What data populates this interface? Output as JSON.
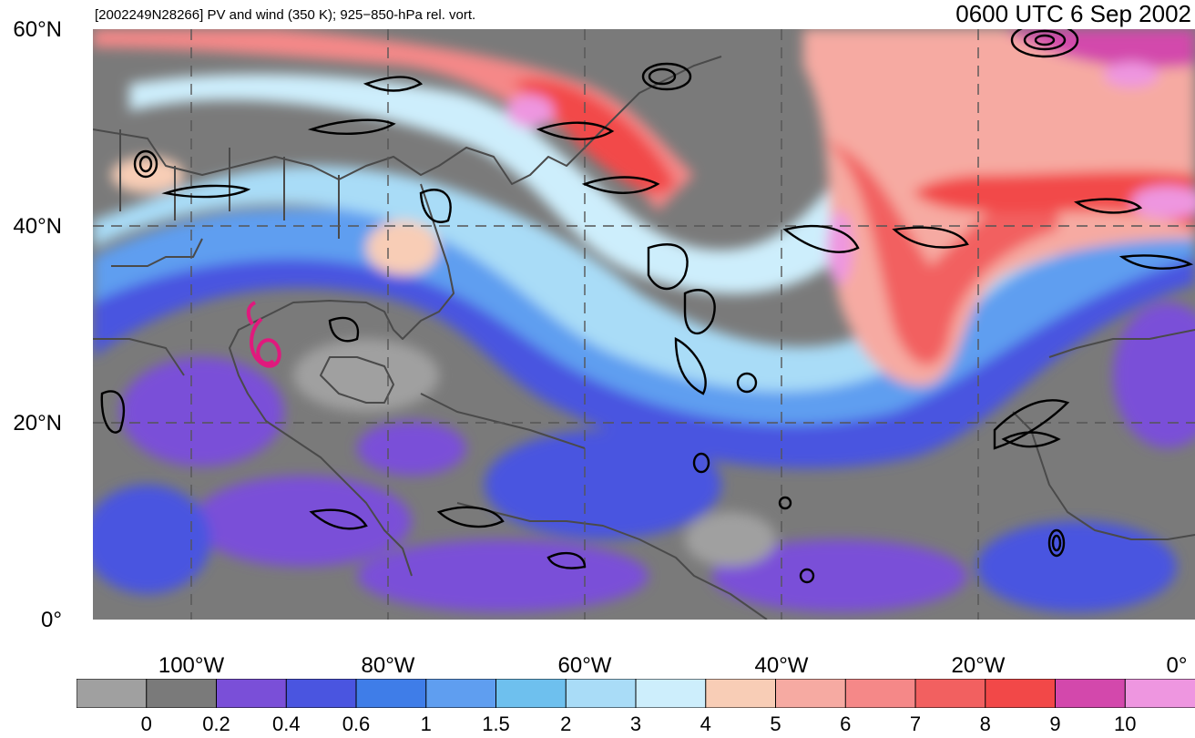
{
  "header": {
    "subtitle": "[2002249N28266] PV and wind (350 K); 925−850-hPa rel. vort.",
    "title": "0600 UTC 6 Sep 2002"
  },
  "map": {
    "lat_labels": [
      "60°N",
      "40°N",
      "20°N",
      "0°"
    ],
    "lon_labels": [
      "100°W",
      "80°W",
      "60°W",
      "40°W",
      "20°W",
      "0°"
    ],
    "storm_marker_color": "#e0197d"
  },
  "colorbar": {
    "labels": [
      "0",
      "0.2",
      "0.4",
      "0.6",
      "1",
      "1.5",
      "2",
      "3",
      "4",
      "5",
      "6",
      "7",
      "8",
      "9",
      "10"
    ],
    "colors": [
      "#a0a0a0",
      "#7a7a7a",
      "#7a4fd8",
      "#4a55e0",
      "#3f7de8",
      "#5f9ef0",
      "#6ec0ee",
      "#a9dcf7",
      "#cdeefc",
      "#f8cdb6",
      "#f6aaa2",
      "#f58888",
      "#f26060",
      "#f24848",
      "#d348ac",
      "#ee96e0"
    ]
  }
}
